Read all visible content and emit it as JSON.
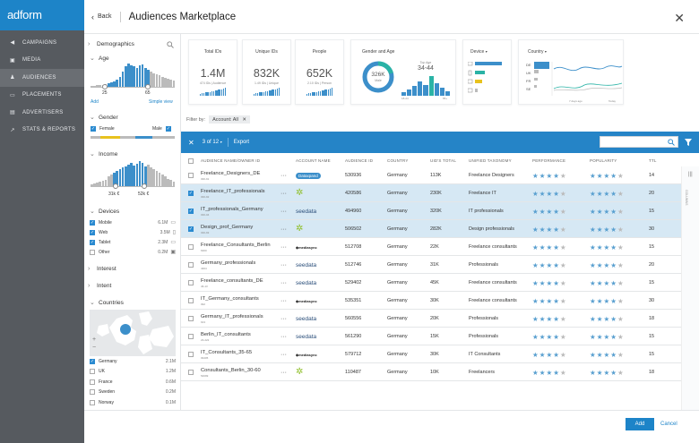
{
  "app": {
    "logo": "adform"
  },
  "nav": [
    {
      "label": "CAMPAIGNS",
      "icon": "megaphone-icon"
    },
    {
      "label": "MEDIA",
      "icon": "media-icon"
    },
    {
      "label": "AUDIENCES",
      "icon": "audiences-icon",
      "active": true
    },
    {
      "label": "PLACEMENTS",
      "icon": "placements-icon"
    },
    {
      "label": "ADVERTISERS",
      "icon": "advertisers-icon"
    },
    {
      "label": "STATS & REPORTS",
      "icon": "chart-icon"
    }
  ],
  "header": {
    "back": "Back",
    "title": "Audiences Marketplace"
  },
  "filters": {
    "demographics": "Demographics",
    "age": {
      "label": "Age",
      "min": "25",
      "max": "65",
      "add": "Add",
      "simple": "Simple view",
      "bars": [
        1,
        1,
        2,
        3,
        3,
        4,
        5,
        6,
        8,
        10,
        14,
        22,
        30,
        34,
        32,
        30,
        28,
        31,
        33,
        27,
        25,
        22,
        20,
        18,
        17,
        15,
        13,
        12,
        10,
        9
      ]
    },
    "gender": {
      "label": "Gender",
      "female": "Female",
      "male": "Male"
    },
    "income": {
      "label": "Income",
      "min": "31k €",
      "max": "52k €",
      "bars": [
        2,
        3,
        4,
        5,
        6,
        8,
        12,
        14,
        16,
        18,
        20,
        22,
        24,
        26,
        28,
        25,
        27,
        30,
        28,
        24,
        26,
        22,
        20,
        18,
        16,
        14,
        12,
        9,
        7,
        5
      ]
    },
    "devices": {
      "label": "Devices",
      "items": [
        {
          "name": "Mobile",
          "value": "6.1M",
          "checked": true,
          "icon": "laptop-icon"
        },
        {
          "name": "Web",
          "value": "3.5M",
          "checked": true,
          "icon": "phone-icon"
        },
        {
          "name": "Tablet",
          "value": "2.3M",
          "checked": true,
          "icon": "desktop-icon"
        },
        {
          "name": "Other",
          "value": "0.2M",
          "checked": false,
          "icon": "tv-icon"
        }
      ]
    },
    "interest": "Interest",
    "intent": "Intent",
    "countries": {
      "label": "Countries",
      "zoom_in": "+",
      "zoom_out": "−",
      "items": [
        {
          "name": "Germany",
          "value": "2.1M",
          "checked": true
        },
        {
          "name": "UK",
          "value": "1.2M",
          "checked": false
        },
        {
          "name": "France",
          "value": "0.6M",
          "checked": false
        },
        {
          "name": "Sweden",
          "value": "0.2M",
          "checked": false
        },
        {
          "name": "Norway",
          "value": "0.1M",
          "checked": false
        }
      ]
    }
  },
  "cards": [
    {
      "title": "Total IDs",
      "value": "1.4M",
      "sub": "474 IDs | Audience"
    },
    {
      "title": "Unique IDs",
      "value": "832K",
      "sub": "1.49 IDs | Unique"
    },
    {
      "title": "People",
      "value": "652K",
      "sub": "2.10 IDs | Person"
    }
  ],
  "gender_card": {
    "title": "Gender and Age",
    "value": "326K",
    "sub": "Male",
    "top_label": "Top Age",
    "top_value": "34-44",
    "axis_left": "18-24",
    "axis_right": "65+"
  },
  "device_card": {
    "title": "Device"
  },
  "country_card": {
    "title": "Country",
    "items": [
      "DE",
      "UK",
      "FR",
      "SE"
    ],
    "axis_left": "7 days ago",
    "axis_right": "Today"
  },
  "filterbar": {
    "label": "Filter by:",
    "chip": "Account: All"
  },
  "toolbar": {
    "count": "3 of 12",
    "export": "Export"
  },
  "table": {
    "columns": [
      "AUDIENCE NAME/OWNER ID",
      "ACCOUNT NAME",
      "AUDIENCE ID",
      "COUNTRY",
      "UID'S TOTAL",
      "UNIFIED TAXONOMY",
      "PERFORMANCE",
      "POPULARITY",
      "TTL"
    ],
    "rows": [
      {
        "name": "Freelance_Designers_DE",
        "owner": "030-91",
        "account": "Dataxpand",
        "aid": "530936",
        "country": "Germany",
        "uids": "113K",
        "tax": "Freelance Designers",
        "perf": 4,
        "pop": 4,
        "ttl": "14",
        "sel": false
      },
      {
        "name": "Freelance_IT_professionals",
        "owner": "030-92",
        "account": "Nielsen",
        "aid": "420586",
        "country": "Germany",
        "uids": "230K",
        "tax": "Freelance IT",
        "perf": 4,
        "pop": 4,
        "ttl": "20",
        "sel": true
      },
      {
        "name": "IT_professionals_Germany",
        "owner": "030-04",
        "account": "seedata",
        "aid": "494960",
        "country": "Germany",
        "uids": "320K",
        "tax": "IT professionals",
        "perf": 4,
        "pop": 4,
        "ttl": "15",
        "sel": true
      },
      {
        "name": "Design_prof_Germany",
        "owner": "030-93",
        "account": "Nielsen",
        "aid": "506502",
        "country": "Germany",
        "uids": "282K",
        "tax": "Design professionals",
        "perf": 4,
        "pop": 4,
        "ttl": "30",
        "sel": true
      },
      {
        "name": "Freelance_Consultants_Berlin",
        "owner": "6300",
        "account": "mediasync",
        "aid": "512708",
        "country": "Germany",
        "uids": "22K",
        "tax": "Freelance consultants",
        "perf": 4,
        "pop": 4,
        "ttl": "15",
        "sel": false
      },
      {
        "name": "Germany_professionals",
        "owner": "4304",
        "account": "seedata",
        "aid": "512746",
        "country": "Germany",
        "uids": "31K",
        "tax": "Professionals",
        "perf": 4,
        "pop": 4,
        "ttl": "20",
        "sel": false
      },
      {
        "name": "Freelance_consultants_DE",
        "owner": "46-13",
        "account": "seedata",
        "aid": "529402",
        "country": "Germany",
        "uids": "45K",
        "tax": "Freelance consultants",
        "perf": 4,
        "pop": 4,
        "ttl": "15",
        "sel": false
      },
      {
        "name": "IT_Germany_consultants",
        "owner": "092",
        "account": "mediasync",
        "aid": "535351",
        "country": "Germany",
        "uids": "30K",
        "tax": "Freelance consultants",
        "perf": 4,
        "pop": 4,
        "ttl": "30",
        "sel": false
      },
      {
        "name": "Germany_IT_professionals",
        "owner": "913",
        "account": "seedata",
        "aid": "560556",
        "country": "Germany",
        "uids": "20K",
        "tax": "Professionals",
        "perf": 4,
        "pop": 4,
        "ttl": "18",
        "sel": false
      },
      {
        "name": "Berlin_IT_consultants",
        "owner": "23-222",
        "account": "seedata",
        "aid": "561290",
        "country": "Germany",
        "uids": "15K",
        "tax": "Professionals",
        "perf": 4,
        "pop": 4,
        "ttl": "15",
        "sel": false
      },
      {
        "name": "IT_Consultants_35-65",
        "owner": "09405",
        "account": "mediasync",
        "aid": "579712",
        "country": "Germany",
        "uids": "30K",
        "tax": "IT Consultants",
        "perf": 4,
        "pop": 4,
        "ttl": "15",
        "sel": false
      },
      {
        "name": "Consultants_Berlin_30-60",
        "owner": "54099",
        "account": "Nielsen",
        "aid": "110487",
        "country": "Germany",
        "uids": "10K",
        "tax": "Freelancers",
        "perf": 4,
        "pop": 4,
        "ttl": "18",
        "sel": false
      }
    ]
  },
  "side_tab": "COLUMNS",
  "footer": {
    "add": "Add",
    "cancel": "Cancel"
  },
  "colors": {
    "brand": "#1d84c8",
    "sidebar": "#565a5f",
    "selected": "#d6e8f4",
    "gender_m": "#3c8fca",
    "gender_f": "#e8c21e",
    "teal": "#2ab3a6"
  }
}
